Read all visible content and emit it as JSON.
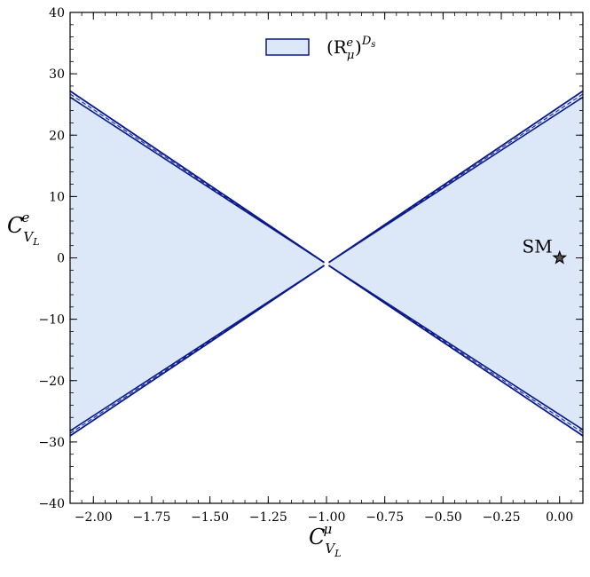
{
  "chart_data": {
    "type": "area",
    "title": "",
    "xlabel": {
      "main": "C",
      "subscript": "V",
      "subscript_sub": "L",
      "superscript": "μ"
    },
    "ylabel": {
      "main": "C",
      "subscript": "V",
      "subscript_sub": "L",
      "superscript": "e"
    },
    "xlim": [
      -2.1,
      0.1
    ],
    "ylim": [
      -40,
      40
    ],
    "x_ticks": [
      -2.0,
      -1.75,
      -1.5,
      -1.25,
      -1.0,
      -0.75,
      -0.5,
      -0.25,
      0.0
    ],
    "x_tick_labels": [
      "−2.00",
      "−1.75",
      "−1.50",
      "−1.25",
      "−1.00",
      "−0.75",
      "−0.50",
      "−0.25",
      "0.00"
    ],
    "y_ticks": [
      -40,
      -30,
      -20,
      -10,
      0,
      10,
      20,
      30,
      40
    ],
    "y_tick_labels": [
      "−40",
      "−30",
      "−20",
      "−10",
      "0",
      "10",
      "20",
      "30",
      "40"
    ],
    "grid": false,
    "legend": {
      "placement": "top-center",
      "label": "(R",
      "label_sub": "μ",
      "label_sup": "e",
      "label_close": ")",
      "label_outer_sup": "D",
      "label_outer_sup_sub": "s"
    },
    "series": [
      {
        "name": "(R_μ^e)^{D_s}",
        "fill": "#dce8f8",
        "edge": "#0b1a8a",
        "center": [
          -1.0,
          -1.0
        ],
        "bands": [
          {
            "edge": "outer",
            "left_top": 27.2,
            "left_bottom": -29.0,
            "right_top": 27.2,
            "right_bottom": -29.0
          },
          {
            "edge": "inner",
            "left_top": 26.2,
            "left_bottom": -28.2,
            "right_top": 26.2,
            "right_bottom": -28.0
          }
        ],
        "central_line": {
          "left_top": 26.7,
          "left_bottom": -28.6,
          "right_top": 26.7,
          "right_bottom": -28.5
        }
      }
    ],
    "points": [
      {
        "label": "SM",
        "x": 0.0,
        "y": 0.0,
        "marker": "star"
      }
    ]
  },
  "colors": {
    "fill": "#dce8f8",
    "edge": "#0b1a8a",
    "axis": "#000000"
  }
}
